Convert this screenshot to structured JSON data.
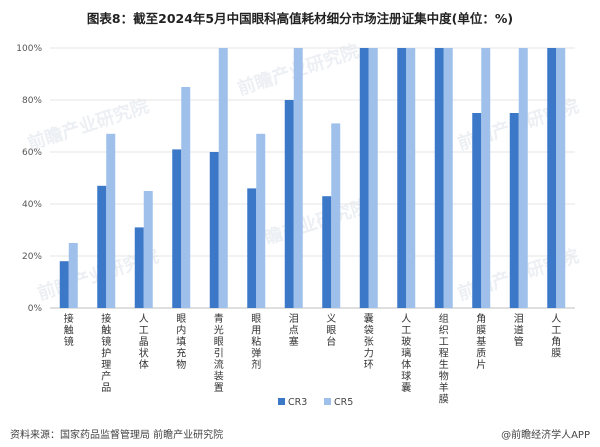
{
  "title": "图表8：截至2024年5月中国眼科高值耗材细分市场注册证集中度(单位：%)",
  "footer": {
    "source": "资料来源：国家药品监督管理局 前瞻产业研究院",
    "brand": "@前瞻经济学人APP"
  },
  "watermark": "前瞻产业研究院",
  "colors": {
    "cr3": "#3b78c8",
    "cr5": "#9ec0ea",
    "grid": "#e6e6e6",
    "axis": "#bfbfbf"
  },
  "chart_data": {
    "type": "bar",
    "categories": [
      "接触镜",
      "接触镜护理产品",
      "人工晶状体",
      "眼内填充物",
      "青光眼引流装置",
      "眼用粘弹剂",
      "泪点塞",
      "义眼台",
      "囊袋张力环",
      "人工玻璃体球囊",
      "组织工程生物羊膜",
      "角膜基质片",
      "泪道管",
      "人工角膜"
    ],
    "series": [
      {
        "name": "CR3",
        "values": [
          18,
          47,
          31,
          61,
          60,
          46,
          80,
          43,
          100,
          100,
          100,
          75,
          75,
          100
        ]
      },
      {
        "name": "CR5",
        "values": [
          25,
          67,
          45,
          85,
          100,
          67,
          100,
          71,
          100,
          100,
          100,
          100,
          100,
          100
        ]
      }
    ],
    "yticks": [
      "0%",
      "20%",
      "40%",
      "60%",
      "80%",
      "100%"
    ],
    "ylim": [
      0,
      100
    ],
    "grid": true,
    "legend_position": "bottom-center"
  }
}
